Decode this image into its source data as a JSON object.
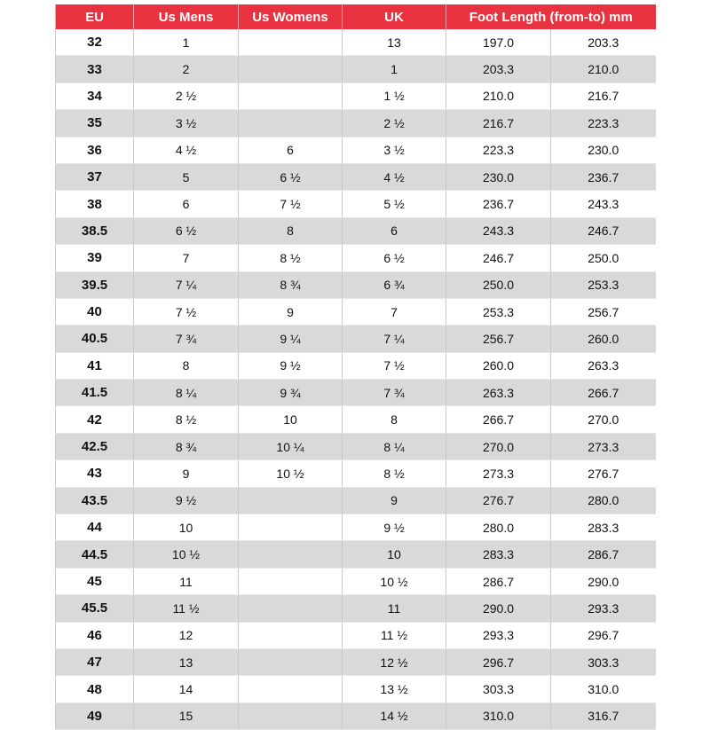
{
  "table": {
    "header": [
      "EU",
      "Us Mens",
      "Us Womens",
      "UK",
      "Foot Length (from-to) mm"
    ],
    "rows": [
      [
        "32",
        "1",
        null,
        "13",
        "197.0",
        "203.3"
      ],
      [
        "33",
        "2",
        null,
        "1",
        "203.3",
        "210.0"
      ],
      [
        "34",
        "2 ½",
        null,
        "1 ½",
        "210.0",
        "216.7"
      ],
      [
        "35",
        "3 ½",
        null,
        "2 ½",
        "216.7",
        "223.3"
      ],
      [
        "36",
        "4 ½",
        "6",
        "3 ½",
        "223.3",
        "230.0"
      ],
      [
        "37",
        "5",
        "6 ½",
        "4 ½",
        "230.0",
        "236.7"
      ],
      [
        "38",
        "6",
        "7 ½",
        "5 ½",
        "236.7",
        "243.3"
      ],
      [
        "38.5",
        "6 ½",
        "8",
        "6",
        "243.3",
        "246.7"
      ],
      [
        "39",
        "7",
        "8 ½",
        "6 ½",
        "246.7",
        "250.0"
      ],
      [
        "39.5",
        "7 ¼",
        "8 ¾",
        "6 ¾",
        "250.0",
        "253.3"
      ],
      [
        "40",
        "7 ½",
        "9",
        "7",
        "253.3",
        "256.7"
      ],
      [
        "40.5",
        "7 ¾",
        "9 ¼",
        "7 ¼",
        "256.7",
        "260.0"
      ],
      [
        "41",
        "8",
        "9 ½",
        "7 ½",
        "260.0",
        "263.3"
      ],
      [
        "41.5",
        "8 ¼",
        "9 ¾",
        "7 ¾",
        "263.3",
        "266.7"
      ],
      [
        "42",
        "8 ½",
        "10",
        "8",
        "266.7",
        "270.0"
      ],
      [
        "42.5",
        "8 ¾",
        "10 ¼",
        "8 ¼",
        "270.0",
        "273.3"
      ],
      [
        "43",
        "9",
        "10 ½",
        "8 ½",
        "273.3",
        "276.7"
      ],
      [
        "43.5",
        "9 ½",
        null,
        "9",
        "276.7",
        "280.0"
      ],
      [
        "44",
        "10",
        null,
        "9 ½",
        "280.0",
        "283.3"
      ],
      [
        "44.5",
        "10 ½",
        null,
        "10",
        "283.3",
        "286.7"
      ],
      [
        "45",
        "11",
        null,
        "10 ½",
        "286.7",
        "290.0"
      ],
      [
        "45.5",
        "11 ½",
        null,
        "11",
        "290.0",
        "293.3"
      ],
      [
        "46",
        "12",
        null,
        "11 ½",
        "293.3",
        "296.7"
      ],
      [
        "47",
        "13",
        null,
        "12 ½",
        "296.7",
        "303.3"
      ],
      [
        "48",
        "14",
        null,
        "13 ½",
        "303.3",
        "310.0"
      ],
      [
        "49",
        "15",
        null,
        "14 ½",
        "310.0",
        "316.7"
      ]
    ]
  }
}
